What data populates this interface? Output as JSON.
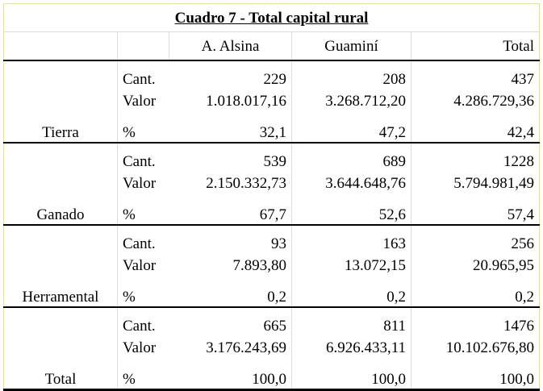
{
  "title": "Cuadro 7 - Total capital rural",
  "columns": [
    "A. Alsina",
    "Guaminí",
    "Total"
  ],
  "row_kinds": [
    "Cant.",
    "Valor",
    "%"
  ],
  "groups": [
    {
      "label": "Tierra",
      "rows": [
        [
          "229",
          "208",
          "437"
        ],
        [
          "1.018.017,16",
          "3.268.712,20",
          "4.286.729,36"
        ],
        [
          "32,1",
          "47,2",
          "42,4"
        ]
      ]
    },
    {
      "label": "Ganado",
      "rows": [
        [
          "539",
          "689",
          "1228"
        ],
        [
          "2.150.332,73",
          "3.644.648,76",
          "5.794.981,49"
        ],
        [
          "67,7",
          "52,6",
          "57,4"
        ]
      ]
    },
    {
      "label": "Herramental",
      "rows": [
        [
          "93",
          "163",
          "256"
        ],
        [
          "7.893,80",
          "13.072,15",
          "20.965,95"
        ],
        [
          "0,2",
          "0,2",
          "0,2"
        ]
      ]
    },
    {
      "label": "Total",
      "rows": [
        [
          "665",
          "811",
          "1476"
        ],
        [
          "3.176.243,69",
          "6.926.433,11",
          "10.102.676,80"
        ],
        [
          "100,0",
          "100,0",
          "100,0"
        ]
      ]
    }
  ]
}
